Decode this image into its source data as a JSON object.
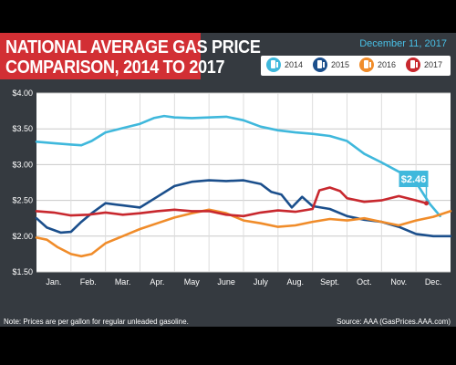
{
  "title": [
    "NATIONAL AVERAGE GAS PRICE",
    "COMPARISON, 2014 TO 2017"
  ],
  "date": "December 11, 2017",
  "note": "Note: Prices are per gallon for regular unleaded gasoline.",
  "source": "Source: AAA (GasPrices.AAA.com)",
  "legend_icon": "gas-pump-icon",
  "chart_data": {
    "type": "line",
    "title": "NATIONAL AVERAGE GAS PRICE COMPARISON, 2014 TO 2017",
    "xlabel": "",
    "ylabel": "",
    "categories": [
      "Jan.",
      "Feb.",
      "Mar.",
      "Apr.",
      "May",
      "June",
      "July",
      "Aug.",
      "Sept.",
      "Oct.",
      "Nov.",
      "Dec."
    ],
    "ylim": [
      1.5,
      4.0
    ],
    "yticks": [
      "$1.50",
      "$2.00",
      "$2.50",
      "$3.00",
      "$3.50",
      "$4.00"
    ],
    "grid": true,
    "legend_position": "top-right",
    "callout": {
      "label": "$2.46",
      "series": "2017",
      "x": 11.3,
      "y": 2.46
    },
    "series": [
      {
        "name": "2014",
        "color": "#3fb8dc",
        "points": [
          [
            0.0,
            3.32
          ],
          [
            0.5,
            3.3
          ],
          [
            1.0,
            3.28
          ],
          [
            1.3,
            3.27
          ],
          [
            1.6,
            3.33
          ],
          [
            2.0,
            3.45
          ],
          [
            2.5,
            3.51
          ],
          [
            3.0,
            3.57
          ],
          [
            3.4,
            3.65
          ],
          [
            3.7,
            3.68
          ],
          [
            4.0,
            3.66
          ],
          [
            4.5,
            3.65
          ],
          [
            5.0,
            3.66
          ],
          [
            5.5,
            3.67
          ],
          [
            6.0,
            3.62
          ],
          [
            6.5,
            3.53
          ],
          [
            7.0,
            3.48
          ],
          [
            7.5,
            3.45
          ],
          [
            8.0,
            3.43
          ],
          [
            8.5,
            3.4
          ],
          [
            9.0,
            3.33
          ],
          [
            9.5,
            3.15
          ],
          [
            10.0,
            3.03
          ],
          [
            10.5,
            2.9
          ],
          [
            11.0,
            2.75
          ],
          [
            11.4,
            2.45
          ],
          [
            11.7,
            2.28
          ]
        ]
      },
      {
        "name": "2015",
        "color": "#1b4f8c",
        "points": [
          [
            0.0,
            2.25
          ],
          [
            0.3,
            2.12
          ],
          [
            0.7,
            2.05
          ],
          [
            1.0,
            2.06
          ],
          [
            1.3,
            2.2
          ],
          [
            1.6,
            2.32
          ],
          [
            2.0,
            2.46
          ],
          [
            2.5,
            2.43
          ],
          [
            3.0,
            2.4
          ],
          [
            3.5,
            2.55
          ],
          [
            4.0,
            2.7
          ],
          [
            4.5,
            2.76
          ],
          [
            5.0,
            2.78
          ],
          [
            5.5,
            2.77
          ],
          [
            6.0,
            2.78
          ],
          [
            6.5,
            2.73
          ],
          [
            6.8,
            2.62
          ],
          [
            7.1,
            2.58
          ],
          [
            7.4,
            2.4
          ],
          [
            7.7,
            2.55
          ],
          [
            8.0,
            2.42
          ],
          [
            8.5,
            2.38
          ],
          [
            9.0,
            2.28
          ],
          [
            9.5,
            2.23
          ],
          [
            10.0,
            2.2
          ],
          [
            10.5,
            2.13
          ],
          [
            11.0,
            2.03
          ],
          [
            11.5,
            2.0
          ],
          [
            12.0,
            2.0
          ]
        ]
      },
      {
        "name": "2016",
        "color": "#f08c2a",
        "points": [
          [
            0.0,
            1.98
          ],
          [
            0.3,
            1.95
          ],
          [
            0.6,
            1.85
          ],
          [
            1.0,
            1.75
          ],
          [
            1.3,
            1.72
          ],
          [
            1.6,
            1.75
          ],
          [
            2.0,
            1.9
          ],
          [
            2.5,
            2.0
          ],
          [
            3.0,
            2.1
          ],
          [
            3.5,
            2.18
          ],
          [
            4.0,
            2.26
          ],
          [
            4.5,
            2.32
          ],
          [
            5.0,
            2.37
          ],
          [
            5.5,
            2.32
          ],
          [
            6.0,
            2.22
          ],
          [
            6.5,
            2.18
          ],
          [
            7.0,
            2.13
          ],
          [
            7.5,
            2.15
          ],
          [
            8.0,
            2.2
          ],
          [
            8.5,
            2.24
          ],
          [
            9.0,
            2.22
          ],
          [
            9.5,
            2.25
          ],
          [
            10.0,
            2.2
          ],
          [
            10.5,
            2.15
          ],
          [
            11.0,
            2.22
          ],
          [
            11.5,
            2.27
          ],
          [
            12.0,
            2.35
          ]
        ]
      },
      {
        "name": "2017",
        "color": "#c8282e",
        "points": [
          [
            0.0,
            2.35
          ],
          [
            0.5,
            2.33
          ],
          [
            1.0,
            2.29
          ],
          [
            1.5,
            2.3
          ],
          [
            2.0,
            2.33
          ],
          [
            2.5,
            2.3
          ],
          [
            3.0,
            2.32
          ],
          [
            3.5,
            2.35
          ],
          [
            4.0,
            2.37
          ],
          [
            4.5,
            2.35
          ],
          [
            5.0,
            2.35
          ],
          [
            5.5,
            2.3
          ],
          [
            6.0,
            2.28
          ],
          [
            6.5,
            2.33
          ],
          [
            7.0,
            2.36
          ],
          [
            7.5,
            2.34
          ],
          [
            8.0,
            2.38
          ],
          [
            8.2,
            2.64
          ],
          [
            8.5,
            2.68
          ],
          [
            8.8,
            2.63
          ],
          [
            9.0,
            2.53
          ],
          [
            9.5,
            2.48
          ],
          [
            10.0,
            2.5
          ],
          [
            10.5,
            2.56
          ],
          [
            11.0,
            2.5
          ],
          [
            11.3,
            2.46
          ]
        ]
      }
    ]
  }
}
